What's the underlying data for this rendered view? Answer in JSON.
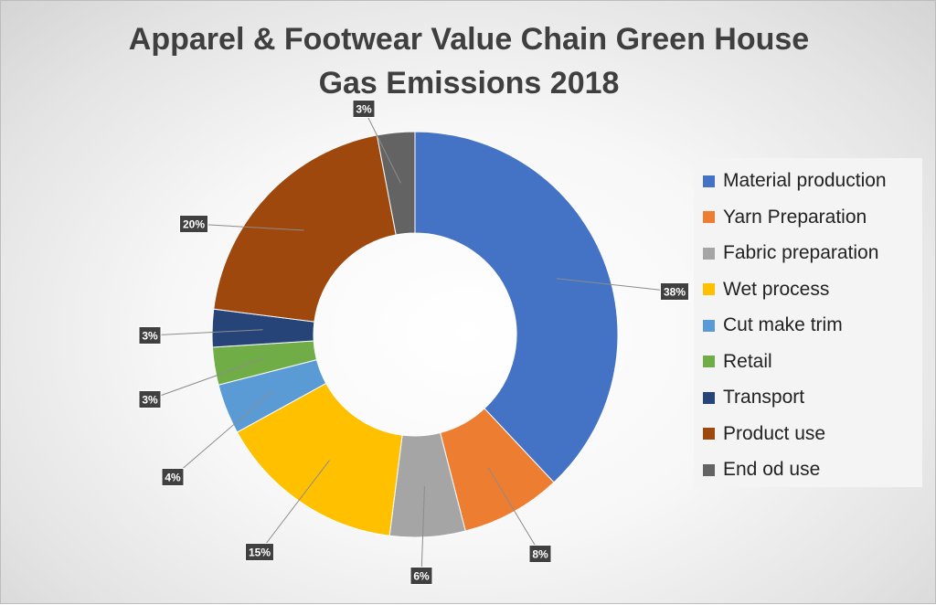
{
  "chart_data": {
    "type": "donut",
    "title": "Apparel & Footwear Value Chain Green House Gas Emissions 2018",
    "title_lines": [
      "Apparel & Footwear Value Chain Green House",
      "Gas Emissions 2018"
    ],
    "legend_position": "right",
    "categories": [
      "Material production",
      "Yarn Preparation",
      "Fabric preparation",
      "Wet process",
      "Cut make trim",
      "Retail",
      "Transport",
      "Product use",
      "End od use"
    ],
    "values": [
      38,
      8,
      6,
      15,
      4,
      3,
      3,
      20,
      3
    ],
    "data_labels": [
      "38%",
      "8%",
      "6%",
      "15%",
      "4%",
      "3%",
      "3%",
      "20%",
      "3%"
    ],
    "colors": [
      "#4472C4",
      "#ED7D31",
      "#A5A5A5",
      "#FFC000",
      "#5B9BD5",
      "#70AD47",
      "#264478",
      "#9E480E",
      "#636363"
    ]
  }
}
